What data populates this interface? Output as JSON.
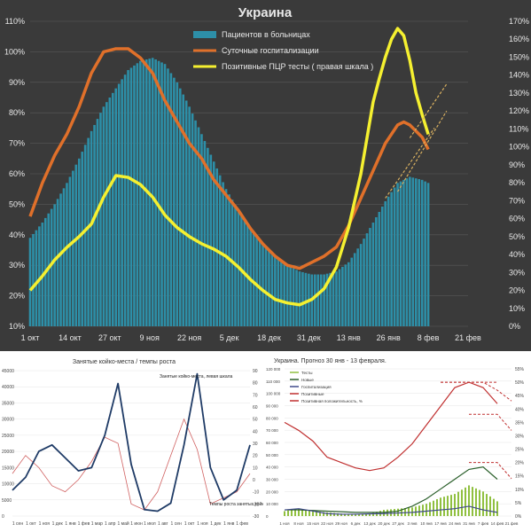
{
  "chart_data": [
    {
      "type": "bar",
      "title": "Украина",
      "theme": {
        "background": "#3a3a3a",
        "text": "#e8e8e8",
        "grid": "#595959"
      },
      "x_ticks": [
        "1 окт",
        "14 окт",
        "27 окт",
        "9 ноя",
        "22 ноя",
        "5 дек",
        "18 дек",
        "31 дек",
        "13 янв",
        "26 янв",
        "8 фев",
        "21 фев"
      ],
      "y_left": {
        "ticks": [
          "10%",
          "20%",
          "30%",
          "40%",
          "50%",
          "60%",
          "70%",
          "80%",
          "90%",
          "100%",
          "110%"
        ],
        "min": 10,
        "max": 110
      },
      "y_right": {
        "ticks": [
          "0%",
          "10%",
          "20%",
          "30%",
          "40%",
          "50%",
          "60%",
          "70%",
          "80%",
          "90%",
          "100%",
          "110%",
          "120%",
          "130%",
          "140%",
          "150%",
          "160%",
          "170%"
        ],
        "min": 0,
        "max": 170
      },
      "legend": [
        "Пациентов в больницах",
        "Суточные госпитализации",
        "Позитивные ПЦР тесты ( правая шкала )"
      ],
      "colors": {
        "bars": "#2d8fa8",
        "hosp": "#e0702a",
        "pcr": "#f5f030",
        "forecast": "#d8b060"
      },
      "hospital_bars": {
        "x": [
          0,
          4,
          8,
          12,
          16,
          20,
          24,
          28,
          32,
          36,
          40,
          44,
          48,
          52,
          56,
          60,
          64,
          68,
          72,
          76,
          80,
          84,
          88,
          92,
          96,
          100,
          104,
          108,
          112,
          116,
          120,
          124,
          128,
          130
        ],
        "y": [
          39,
          44,
          50,
          57,
          65,
          74,
          82,
          88,
          94,
          97,
          98,
          96,
          90,
          82,
          73,
          64,
          55,
          48,
          42,
          37,
          33,
          30,
          28,
          27,
          27,
          28,
          31,
          37,
          44,
          51,
          57,
          59,
          58,
          57
        ]
      },
      "hospitalizations": {
        "x": [
          0,
          4,
          8,
          12,
          16,
          20,
          24,
          28,
          32,
          36,
          40,
          44,
          48,
          52,
          56,
          60,
          64,
          68,
          72,
          76,
          80,
          84,
          88,
          92,
          96,
          100,
          104,
          108,
          112,
          116,
          120,
          122,
          124,
          126,
          128,
          130
        ],
        "y": [
          46,
          57,
          66,
          73,
          82,
          93,
          100,
          101,
          101,
          98,
          93,
          84,
          77,
          70,
          65,
          58,
          53,
          48,
          42,
          37,
          33,
          30,
          29,
          31,
          33,
          36,
          43,
          52,
          61,
          70,
          76,
          77,
          76,
          74,
          72,
          68
        ]
      },
      "hosp_forecast": [
        {
          "x": [
            116,
            132
          ],
          "y": [
            52,
            75
          ]
        }
      ],
      "pcr_tests": {
        "x": [
          0,
          4,
          8,
          12,
          16,
          20,
          24,
          28,
          32,
          36,
          40,
          44,
          48,
          52,
          56,
          60,
          64,
          68,
          72,
          76,
          80,
          84,
          88,
          92,
          96,
          100,
          104,
          108,
          112,
          114,
          116,
          118,
          120,
          122,
          124,
          126,
          128,
          130
        ],
        "y": [
          20,
          28,
          37,
          44,
          50,
          57,
          72,
          84,
          83,
          79,
          72,
          62,
          55,
          50,
          46,
          43,
          39,
          33,
          26,
          20,
          15,
          13,
          12,
          15,
          21,
          33,
          55,
          85,
          125,
          138,
          150,
          160,
          166,
          162,
          148,
          130,
          118,
          107
        ]
      },
      "pcr_forecast": [
        {
          "x": [
            124,
            136
          ],
          "y": [
            105,
            135
          ]
        },
        {
          "x": [
            120,
            136
          ],
          "y": [
            75,
            120
          ]
        }
      ]
    },
    {
      "type": "line",
      "title": "Занятые койко-места / темпы роста",
      "x_ticks": [
        "1 сен",
        "1 окт",
        "1 ноя",
        "1 дек",
        "1 янв",
        "1 фев",
        "1 мар",
        "1 апр",
        "1 май",
        "1 июн",
        "1 июл",
        "1 авг",
        "1 сен",
        "1 окт",
        "1 ноя",
        "1 дек",
        "1 янв",
        "1 фев"
      ],
      "y_left_ticks": [
        "0",
        "5000",
        "10000",
        "15000",
        "20000",
        "25000",
        "30000",
        "35000",
        "40000",
        "45000"
      ],
      "y_right_ticks": [
        "-30",
        "-20",
        "-10",
        "0",
        "10",
        "20",
        "30",
        "40",
        "50",
        "60",
        "70",
        "80",
        "90"
      ],
      "annotations": [
        "Занятые койко-места, левая шкала",
        "Темпы роста занятых койко-мест"
      ],
      "colors": {
        "beds": "#1f3b66",
        "growth": "#d06060"
      },
      "beds": {
        "x": [
          0,
          1,
          2,
          3,
          4,
          5,
          6,
          7,
          8,
          9,
          10,
          11,
          12,
          13,
          14,
          15,
          16,
          17,
          18
        ],
        "y": [
          8000,
          12000,
          20000,
          22000,
          18000,
          14000,
          15000,
          25000,
          41000,
          16000,
          2000,
          1500,
          4000,
          22000,
          44000,
          15000,
          5000,
          8000,
          22000
        ]
      },
      "growth": {
        "x": [
          0,
          1,
          2,
          3,
          4,
          5,
          6,
          7,
          8,
          9,
          10,
          11,
          12,
          13,
          14,
          15,
          16,
          17,
          18
        ],
        "y": [
          5,
          20,
          10,
          -5,
          -10,
          0,
          15,
          35,
          30,
          -20,
          -25,
          -10,
          20,
          50,
          25,
          -20,
          -15,
          -10,
          5
        ]
      }
    },
    {
      "type": "line",
      "title": "Украина. Прогноз 30 янв - 13 февраля.",
      "x_ticks": [
        "1 ноя",
        "8 ноя",
        "15 ноя",
        "22 ноя",
        "29 ноя",
        "6 дек",
        "13 дек",
        "20 дек",
        "27 дек",
        "3 янв",
        "10 янв",
        "17 янв",
        "24 янв",
        "31 янв",
        "7 фев",
        "14 фев",
        "21 фев"
      ],
      "y_left_ticks": [
        "0",
        "10 000",
        "20 000",
        "30 000",
        "40 000",
        "50 000",
        "60 000",
        "70 000",
        "80 000",
        "90 000",
        "100 000",
        "110 000",
        "120 000"
      ],
      "y_right_ticks": [
        "0%",
        "5%",
        "10%",
        "15%",
        "20%",
        "25%",
        "30%",
        "35%",
        "40%",
        "45%",
        "50%",
        "55%"
      ],
      "legend": [
        "Тесты",
        "Новые",
        "Госпитализация",
        "Позитивные",
        "Позитивная положительность, %"
      ],
      "colors": {
        "tests": "#90c040",
        "new": "#2a5f2a",
        "hosp": "#404a8a",
        "positivity": "#c03030",
        "forecast": "#c03030"
      },
      "tests_bars": {
        "x": [
          0,
          1,
          2,
          3,
          4,
          5,
          6,
          7,
          8,
          9,
          10,
          11,
          12,
          13,
          14,
          15
        ],
        "y": [
          4000,
          6000,
          4000,
          3000,
          2000,
          1500,
          2000,
          5000,
          6000,
          7000,
          10000,
          15000,
          18000,
          25000,
          20000,
          12000
        ]
      },
      "new_cases": {
        "x": [
          0,
          1,
          2,
          3,
          4,
          5,
          6,
          7,
          8,
          9,
          10,
          11,
          12,
          13,
          14,
          15
        ],
        "y": [
          5000,
          5000,
          4500,
          4000,
          3500,
          3000,
          3000,
          3000,
          4000,
          8000,
          14000,
          22000,
          30000,
          38000,
          40000,
          30000
        ]
      },
      "hospitalizations": {
        "x": [
          0,
          1,
          2,
          3,
          4,
          5,
          6,
          7,
          8,
          9,
          10,
          11,
          12,
          13,
          14,
          15
        ],
        "y": [
          5000,
          6000,
          4000,
          2000,
          1500,
          1500,
          1800,
          2000,
          2500,
          3000,
          4000,
          5000,
          6000,
          8000,
          5000,
          3000
        ]
      },
      "positivity": {
        "x": [
          0,
          1,
          2,
          3,
          4,
          5,
          6,
          7,
          8,
          9,
          10,
          11,
          12,
          13,
          14,
          15
        ],
        "y": [
          35,
          32,
          28,
          22,
          20,
          18,
          17,
          18,
          22,
          27,
          34,
          41,
          48,
          50,
          48,
          42
        ]
      },
      "forecast_lines": [
        {
          "x": [
            11,
            15
          ],
          "y": [
            50,
            50
          ]
        },
        {
          "x": [
            11,
            14,
            15,
            16
          ],
          "y": [
            50,
            50,
            47,
            43
          ]
        },
        {
          "x": [
            13,
            15,
            16
          ],
          "y": [
            38,
            38,
            32
          ]
        },
        {
          "x": [
            13,
            15,
            16
          ],
          "y": [
            20,
            20,
            14
          ]
        }
      ]
    }
  ]
}
